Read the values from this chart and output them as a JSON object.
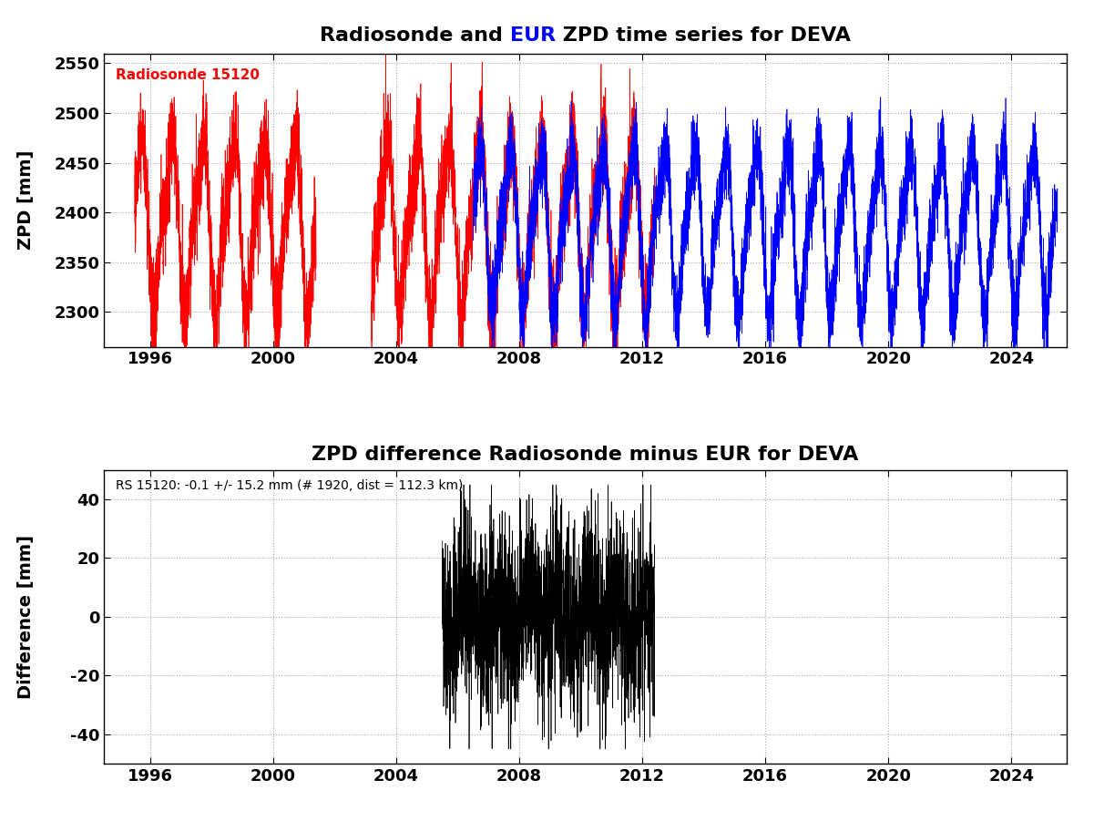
{
  "title1_part0": "Radiosonde and ",
  "title1_part1": "EUR",
  "title1_part2": " ZPD time series for DEVA",
  "title2": "ZPD difference Radiosonde minus EUR for DEVA",
  "ylabel1": "ZPD [mm]",
  "ylabel2": "Difference [mm]",
  "radiosonde_label": "Radiosonde 15120",
  "stats_label": "RS 15120: -0.1 +/- 15.2 mm (# 1920, dist = 112.3 km)",
  "xlim": [
    1994.5,
    2025.8
  ],
  "ylim1": [
    2265,
    2560
  ],
  "ylim2": [
    -50,
    50
  ],
  "yticks1": [
    2300,
    2350,
    2400,
    2450,
    2500,
    2550
  ],
  "yticks2": [
    -40,
    -20,
    0,
    20,
    40
  ],
  "xticks": [
    1996,
    2000,
    2004,
    2008,
    2012,
    2016,
    2020,
    2024
  ],
  "rs_color": "red",
  "epn_color": "blue",
  "diff_color": "black",
  "grid_color": "#aaaaaa",
  "title_fontsize": 16,
  "label_fontsize": 14,
  "tick_fontsize": 13,
  "annotation_fontsize": 11,
  "stats_fontsize": 10,
  "rs1_start": 1995.5,
  "rs1_end": 2001.4,
  "rs2_start": 2003.2,
  "rs2_end": 2012.4,
  "epn_start": 2006.5,
  "epn_end": 2025.5,
  "diff_start": 2005.5,
  "diff_end": 2012.4,
  "zpd_mean": 2390,
  "zpd_amp": 80,
  "zpd_noise": 25,
  "diff_mean": -0.1,
  "diff_std": 15.2
}
